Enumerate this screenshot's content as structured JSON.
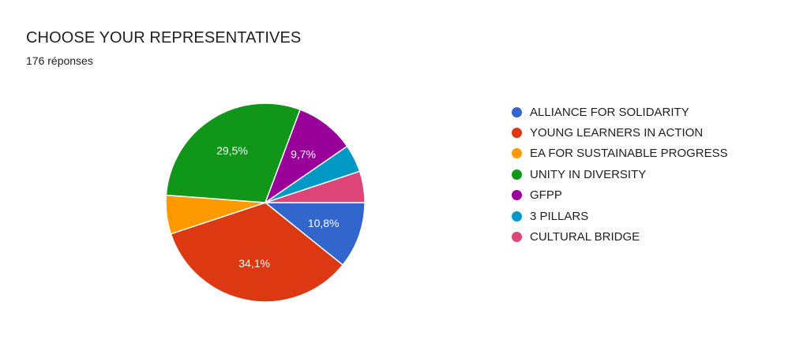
{
  "header": {
    "title": "CHOOSE YOUR REPRESENTATIVES",
    "responses": "176 réponses"
  },
  "chart_data": {
    "type": "pie",
    "title": "CHOOSE YOUR REPRESENTATIVES",
    "subtitle": "176 réponses",
    "legend_position": "right",
    "slices": [
      {
        "label": "ALLIANCE FOR SOLIDARITY",
        "value": 10.8,
        "color": "#3366cc",
        "display_label": "10,8%"
      },
      {
        "label": "YOUNG LEARNERS IN ACTION",
        "value": 34.1,
        "color": "#dc3912",
        "display_label": "34,1%"
      },
      {
        "label": "EA FOR SUSTAINABLE PROGRESS",
        "value": 6.3,
        "color": "#ff9900",
        "display_label": ""
      },
      {
        "label": "UNITY IN DIVERSITY",
        "value": 29.5,
        "color": "#109618",
        "display_label": "29,5%"
      },
      {
        "label": "GFPP",
        "value": 9.7,
        "color": "#990099",
        "display_label": "9,7%"
      },
      {
        "label": "3 PILLARS",
        "value": 4.5,
        "color": "#0099c6",
        "display_label": ""
      },
      {
        "label": "CULTURAL BRIDGE",
        "value": 5.1,
        "color": "#dd4477",
        "display_label": ""
      }
    ]
  }
}
